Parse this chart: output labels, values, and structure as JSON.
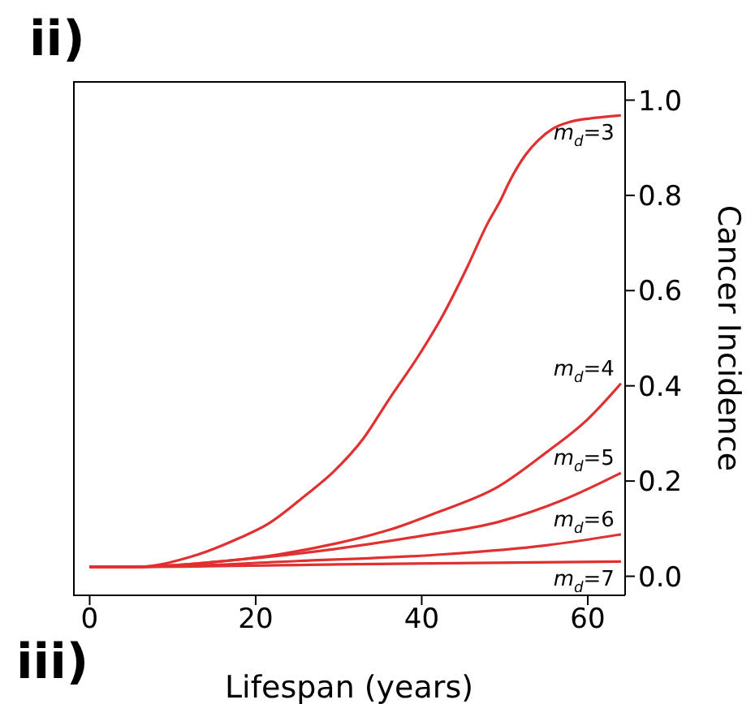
{
  "chart_data": {
    "type": "line",
    "xlabel": "Lifespan (years)",
    "ylabel": "Cancer Incidence",
    "annotations": [
      "ii)",
      "iii)"
    ],
    "xlim": [
      -2,
      64.5
    ],
    "xticks": [
      0,
      20,
      40,
      60
    ],
    "ylim": [
      -0.04,
      1.04
    ],
    "yticks": [
      {
        "value": 0,
        "label": "0.0"
      },
      {
        "value": 0.2,
        "label": "0.2"
      },
      {
        "value": 0.4,
        "label": "0.4"
      },
      {
        "value": 0.6,
        "label": "0.6"
      },
      {
        "value": 0.8,
        "label": "0.8"
      },
      {
        "value": 1,
        "label": "1.0"
      }
    ],
    "grid": false,
    "legend": false,
    "marker": "none",
    "line_style": "solid",
    "series": [
      {
        "name": "m$_{d}$=3",
        "color": "#e03030",
        "x": [
          0,
          6,
          12,
          18,
          21.5,
          26,
          29.4,
          33,
          36,
          39.5,
          42.6,
          45.5,
          47.9,
          49.5,
          50.6,
          52.5,
          54,
          55.8,
          58,
          61,
          64
        ],
        "values": [
          0.02,
          0.02,
          0.04,
          0.08,
          0.11,
          0.17,
          0.22,
          0.29,
          0.37,
          0.46,
          0.55,
          0.65,
          0.74,
          0.79,
          0.83,
          0.885,
          0.915,
          0.94,
          0.955,
          0.963,
          0.968
        ]
      },
      {
        "name": "m$_{d}$=4",
        "color": "#e03030",
        "x": [
          0,
          6,
          15,
          22.8,
          30,
          36,
          42,
          49.2,
          55,
          60,
          64
        ],
        "values": [
          0.02,
          0.02,
          0.03,
          0.046,
          0.07,
          0.097,
          0.135,
          0.188,
          0.26,
          0.33,
          0.405
        ]
      },
      {
        "name": "m$_{d}$=5",
        "color": "#e03030",
        "x": [
          0,
          6,
          18,
          29.4,
          40,
          49.2,
          57,
          64
        ],
        "values": [
          0.02,
          0.02,
          0.035,
          0.057,
          0.085,
          0.114,
          0.16,
          0.217
        ]
      },
      {
        "name": "m$_{d}$=6",
        "color": "#e03030",
        "x": [
          0,
          6,
          25,
          42.6,
          55,
          64
        ],
        "values": [
          0.02,
          0.02,
          0.032,
          0.046,
          0.065,
          0.088
        ]
      },
      {
        "name": "m$_{d}$=7",
        "color": "#e03030",
        "x": [
          0,
          6,
          30,
          64
        ],
        "values": [
          0.02,
          0.02,
          0.025,
          0.031
        ]
      }
    ]
  }
}
